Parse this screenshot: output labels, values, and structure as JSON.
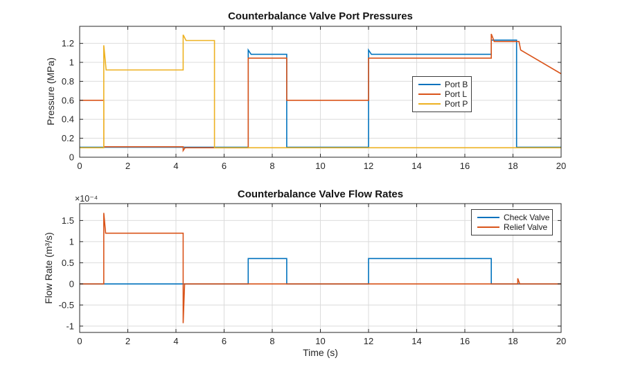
{
  "figure": {
    "background": "#ffffff",
    "axis_color": "#262626",
    "grid_color": "#dbdbdb"
  },
  "chart_data": [
    {
      "type": "line",
      "title": "Counterbalance Valve Port Pressures",
      "xlabel": "",
      "ylabel": "Pressure (MPa)",
      "xlim": [
        0,
        20
      ],
      "ylim": [
        0,
        1.38
      ],
      "xticks": [
        0,
        2,
        4,
        6,
        8,
        10,
        12,
        14,
        16,
        18,
        20
      ],
      "yticks": [
        0,
        0.2,
        0.4,
        0.6,
        0.8,
        1,
        1.2
      ],
      "grid": true,
      "legend_position": "inside-middle-right",
      "series": [
        {
          "name": "Port B",
          "color": "#0072BD",
          "points": [
            [
              0,
              0.105
            ],
            [
              7,
              0.105
            ],
            [
              7,
              1.13
            ],
            [
              7.12,
              1.085
            ],
            [
              8.6,
              1.085
            ],
            [
              8.6,
              0.105
            ],
            [
              12,
              0.105
            ],
            [
              12,
              1.13
            ],
            [
              12.12,
              1.085
            ],
            [
              17.1,
              1.085
            ],
            [
              17.1,
              1.235
            ],
            [
              18.15,
              1.235
            ],
            [
              18.15,
              0.105
            ],
            [
              20,
              0.105
            ]
          ]
        },
        {
          "name": "Port L",
          "color": "#D95319",
          "points": [
            [
              0,
              0.6
            ],
            [
              1,
              0.6
            ],
            [
              1,
              0.11
            ],
            [
              4.3,
              0.11
            ],
            [
              4.3,
              0.07
            ],
            [
              4.38,
              0.1
            ],
            [
              7,
              0.1
            ],
            [
              7,
              1.045
            ],
            [
              8.6,
              1.045
            ],
            [
              8.6,
              0.6
            ],
            [
              12,
              0.6
            ],
            [
              12,
              1.045
            ],
            [
              17.1,
              1.045
            ],
            [
              17.1,
              1.3
            ],
            [
              17.22,
              1.22
            ],
            [
              18.25,
              1.22
            ],
            [
              18.32,
              1.13
            ],
            [
              20,
              0.88
            ]
          ]
        },
        {
          "name": "Port P",
          "color": "#EDB120",
          "points": [
            [
              0,
              0.1
            ],
            [
              1,
              0.1
            ],
            [
              1,
              1.18
            ],
            [
              1.1,
              0.92
            ],
            [
              4.3,
              0.92
            ],
            [
              4.3,
              1.29
            ],
            [
              4.42,
              1.23
            ],
            [
              5.6,
              1.23
            ],
            [
              5.6,
              0.1
            ],
            [
              20,
              0.1
            ]
          ]
        }
      ]
    },
    {
      "type": "line",
      "title": "Counterbalance Valve Flow Rates",
      "xlabel": "Time (s)",
      "ylabel": "Flow Rate (m³/s)",
      "y_multiplier": "×10⁻⁴",
      "xlim": [
        0,
        20
      ],
      "ylim": [
        -1.15,
        1.9
      ],
      "xticks": [
        0,
        2,
        4,
        6,
        8,
        10,
        12,
        14,
        16,
        18,
        20
      ],
      "yticks": [
        -1,
        -0.5,
        0,
        0.5,
        1,
        1.5
      ],
      "grid": true,
      "legend_position": "inside-top-right",
      "series": [
        {
          "name": "Check Valve",
          "color": "#0072BD",
          "points": [
            [
              0,
              0
            ],
            [
              7,
              0
            ],
            [
              7,
              0.6
            ],
            [
              8.6,
              0.6
            ],
            [
              8.6,
              0
            ],
            [
              12,
              0
            ],
            [
              12,
              0.6
            ],
            [
              17.1,
              0.6
            ],
            [
              17.1,
              0
            ],
            [
              20,
              0
            ]
          ]
        },
        {
          "name": "Relief Valve",
          "color": "#D95319",
          "points": [
            [
              0,
              0
            ],
            [
              1,
              0
            ],
            [
              1,
              1.68
            ],
            [
              1.08,
              1.2
            ],
            [
              4.3,
              1.2
            ],
            [
              4.3,
              -0.93
            ],
            [
              4.36,
              0
            ],
            [
              18.2,
              0
            ],
            [
              18.2,
              0.13
            ],
            [
              18.28,
              0
            ],
            [
              20,
              0
            ]
          ]
        }
      ]
    }
  ]
}
